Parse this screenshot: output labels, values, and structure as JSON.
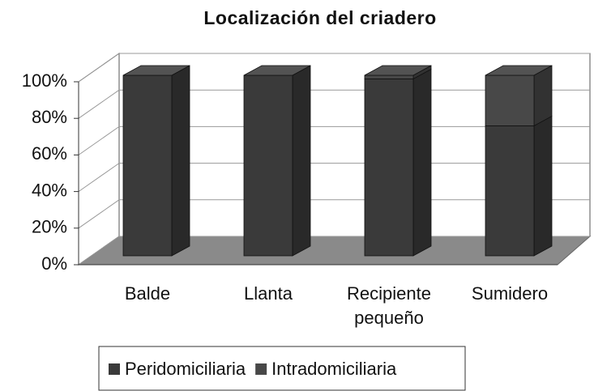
{
  "chart_data": {
    "type": "bar3d_stacked",
    "title": "Localización del criadero",
    "categories": [
      "Balde",
      "Llanta",
      "Recipiente pequeño",
      "Sumidero"
    ],
    "series": [
      {
        "name": "Peridomiciliaria",
        "color": "#3a3a3a",
        "values": [
          100,
          100,
          98,
          72
        ]
      },
      {
        "name": "Intradomiciliaria",
        "color": "#484848",
        "values": [
          0,
          0,
          2,
          28
        ]
      }
    ],
    "ylim": [
      0,
      100
    ],
    "yticks": [
      {
        "value": 0,
        "label": "0%"
      },
      {
        "value": 20,
        "label": "20%"
      },
      {
        "value": 40,
        "label": "40%"
      },
      {
        "value": 60,
        "label": "60%"
      },
      {
        "value": 80,
        "label": "80%"
      },
      {
        "value": 100,
        "label": "100%"
      }
    ],
    "grid": true,
    "legend": "bottom"
  }
}
